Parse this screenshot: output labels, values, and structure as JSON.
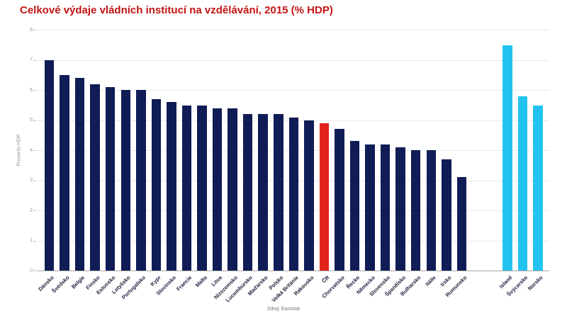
{
  "page": {
    "title": "Celkové výdaje vládních institucí na vzdělávání, 2015 (% HDP)",
    "source_note": "Zdroj: Eurostat"
  },
  "colors": {
    "title": "#c21414",
    "eu_bar": "#101c55",
    "highlight_bar": "#e2231b",
    "efta_bar": "#23c3f0",
    "gridline": "#e9e9e9",
    "axis_line": "#a9a9a9",
    "tick_mark": "#c0c0c0",
    "y_tick_label": "#9a9a9a",
    "x_label": "#1d1d3d"
  },
  "chart_data": {
    "type": "bar",
    "title": "Celkové výdaje vládních institucí na vzdělávání, 2015 (% HDP)",
    "xlabel": "",
    "ylabel": "Procento HDP",
    "ylim": [
      0,
      8
    ],
    "yticks": [
      0,
      1,
      2,
      3,
      4,
      5,
      6,
      7,
      8
    ],
    "grid": true,
    "legend": false,
    "source": "Zdroj: Eurostat",
    "highlighted_category": "ČR",
    "bars": [
      {
        "label": "Dánsko",
        "value": 7.0,
        "group": "eu"
      },
      {
        "label": "Švédsko",
        "value": 6.5,
        "group": "eu"
      },
      {
        "label": "Belgie",
        "value": 6.4,
        "group": "eu"
      },
      {
        "label": "Finsko",
        "value": 6.2,
        "group": "eu"
      },
      {
        "label": "Estonsko",
        "value": 6.1,
        "group": "eu"
      },
      {
        "label": "Lotyšsko",
        "value": 6.0,
        "group": "eu"
      },
      {
        "label": "Portugalsko",
        "value": 6.0,
        "group": "eu"
      },
      {
        "label": "Kypr",
        "value": 5.7,
        "group": "eu"
      },
      {
        "label": "Slovinsko",
        "value": 5.6,
        "group": "eu"
      },
      {
        "label": "Francie",
        "value": 5.5,
        "group": "eu"
      },
      {
        "label": "Malta",
        "value": 5.5,
        "group": "eu"
      },
      {
        "label": "Litva",
        "value": 5.4,
        "group": "eu"
      },
      {
        "label": "Nizozemsko",
        "value": 5.4,
        "group": "eu"
      },
      {
        "label": "Lucembursko",
        "value": 5.2,
        "group": "eu"
      },
      {
        "label": "Maďarsko",
        "value": 5.2,
        "group": "eu"
      },
      {
        "label": "Polsko",
        "value": 5.2,
        "group": "eu"
      },
      {
        "label": "Velká Británie",
        "value": 5.1,
        "group": "eu"
      },
      {
        "label": "Rakousko",
        "value": 5.0,
        "group": "eu"
      },
      {
        "label": "ČR",
        "value": 4.9,
        "group": "highlight"
      },
      {
        "label": "Chorvatsko",
        "value": 4.7,
        "group": "eu"
      },
      {
        "label": "Řecko",
        "value": 4.3,
        "group": "eu"
      },
      {
        "label": "Německo",
        "value": 4.2,
        "group": "eu"
      },
      {
        "label": "Slovensko",
        "value": 4.2,
        "group": "eu"
      },
      {
        "label": "Španělsko",
        "value": 4.1,
        "group": "eu"
      },
      {
        "label": "Bulharsko",
        "value": 4.0,
        "group": "eu"
      },
      {
        "label": "Itálie",
        "value": 4.0,
        "group": "eu"
      },
      {
        "label": "Irsko",
        "value": 3.7,
        "group": "eu"
      },
      {
        "label": "Rumunsko",
        "value": 3.1,
        "group": "eu"
      },
      {
        "spacer": true
      },
      {
        "spacer": true
      },
      {
        "label": "Island",
        "value": 7.5,
        "group": "efta"
      },
      {
        "label": "Švýcarsko",
        "value": 5.8,
        "group": "efta"
      },
      {
        "label": "Norsko",
        "value": 5.5,
        "group": "efta"
      }
    ]
  }
}
